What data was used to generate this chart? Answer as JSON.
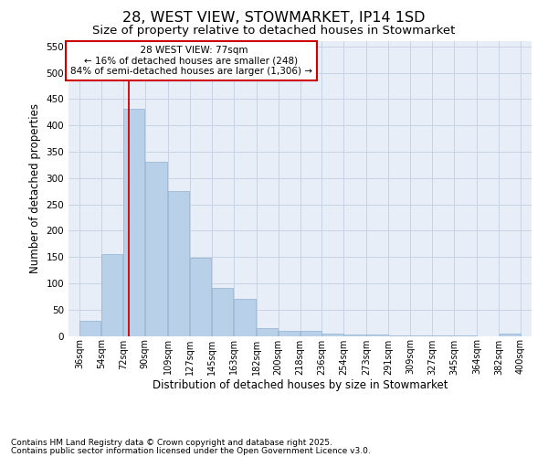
{
  "title": "28, WEST VIEW, STOWMARKET, IP14 1SD",
  "subtitle": "Size of property relative to detached houses in Stowmarket",
  "xlabel": "Distribution of detached houses by size in Stowmarket",
  "ylabel": "Number of detached properties",
  "footnote1": "Contains HM Land Registry data © Crown copyright and database right 2025.",
  "footnote2": "Contains public sector information licensed under the Open Government Licence v3.0.",
  "annotation_title": "28 WEST VIEW: 77sqm",
  "annotation_line1": "← 16% of detached houses are smaller (248)",
  "annotation_line2": "84% of semi-detached houses are larger (1,306) →",
  "property_size_sqm": 77,
  "bar_left_edges": [
    36,
    54,
    72,
    90,
    109,
    127,
    145,
    163,
    182,
    200,
    218,
    236,
    254,
    273,
    291,
    309,
    327,
    345,
    364,
    382
  ],
  "bar_widths": [
    18,
    18,
    18,
    19,
    18,
    18,
    18,
    19,
    18,
    18,
    18,
    18,
    19,
    18,
    18,
    18,
    18,
    19,
    18,
    18
  ],
  "bar_heights": [
    29,
    155,
    432,
    330,
    276,
    149,
    91,
    71,
    14,
    10,
    10,
    5,
    2,
    2,
    1,
    1,
    1,
    1,
    0,
    4
  ],
  "bar_color": "#b8d0e8",
  "bar_edge_color": "#9ab8d4",
  "tick_labels": [
    "36sqm",
    "54sqm",
    "72sqm",
    "90sqm",
    "109sqm",
    "127sqm",
    "145sqm",
    "163sqm",
    "182sqm",
    "200sqm",
    "218sqm",
    "236sqm",
    "254sqm",
    "273sqm",
    "291sqm",
    "309sqm",
    "327sqm",
    "345sqm",
    "364sqm",
    "382sqm",
    "400sqm"
  ],
  "tick_positions": [
    36,
    54,
    72,
    90,
    109,
    127,
    145,
    163,
    182,
    200,
    218,
    236,
    254,
    273,
    291,
    309,
    327,
    345,
    364,
    382,
    400
  ],
  "ylim": [
    0,
    560
  ],
  "xlim": [
    27,
    409
  ],
  "grid_color": "#c8d4e4",
  "bg_color": "#e8eef8",
  "annotation_box_color": "#ffffff",
  "annotation_box_edge": "#cc0000",
  "vline_color": "#cc0000",
  "title_fontsize": 11.5,
  "subtitle_fontsize": 9.5,
  "axis_label_fontsize": 8.5,
  "tick_fontsize": 7,
  "annotation_fontsize": 7.5,
  "footnote_fontsize": 6.5
}
